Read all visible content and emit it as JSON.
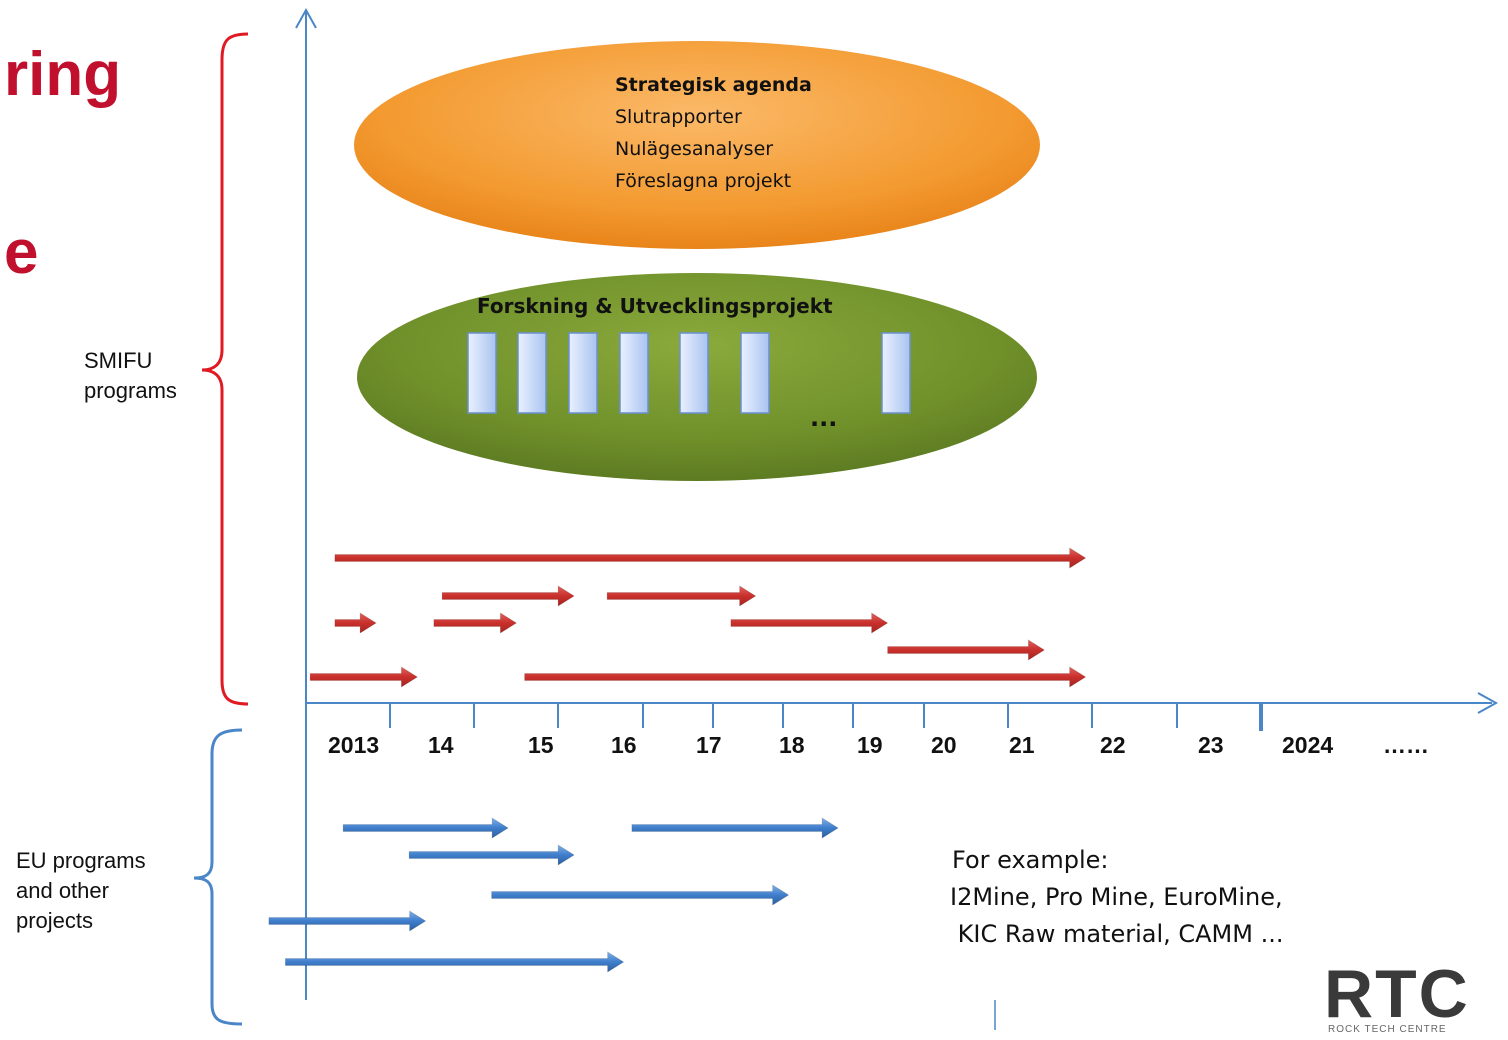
{
  "title_fragments": [
    "ring",
    "e"
  ],
  "labels": {
    "smifu": "SMIFU\nprograms",
    "eu": "EU programs\nand other\nprojects"
  },
  "strategic_ellipse": {
    "heading": "Strategisk agenda",
    "lines": [
      "Slutrapporter",
      "Nulägesanalyser",
      "Föreslagna projekt"
    ],
    "color": "#f39a30"
  },
  "research_ellipse": {
    "heading": "Forskning & Utvecklingsprojekt",
    "ellipsis": "...",
    "box_count": 7,
    "color": "#6f8f2a"
  },
  "axis": {
    "years": [
      "2013",
      "14",
      "15",
      "16",
      "17",
      "18",
      "19",
      "20",
      "21",
      "22",
      "23",
      "2024",
      "……"
    ]
  },
  "smifu_arrows": [
    {
      "start": 2012.7,
      "end": 2021.8
    },
    {
      "start": 2014.0,
      "end": 2015.6
    },
    {
      "start": 2016.0,
      "end": 2017.8
    },
    {
      "start": 2012.7,
      "end": 2013.2
    },
    {
      "start": 2013.9,
      "end": 2014.9
    },
    {
      "start": 2017.5,
      "end": 2019.4
    },
    {
      "start": 2019.4,
      "end": 2021.3
    },
    {
      "start": 2012.4,
      "end": 2013.7
    },
    {
      "start": 2015.0,
      "end": 2021.8
    }
  ],
  "eu_arrows": [
    {
      "start": 2012.8,
      "end": 2014.8
    },
    {
      "start": 2016.3,
      "end": 2018.8
    },
    {
      "start": 2013.6,
      "end": 2015.6
    },
    {
      "start": 2014.6,
      "end": 2018.2
    },
    {
      "start": 2011.9,
      "end": 2013.8
    },
    {
      "start": 2012.1,
      "end": 2016.2
    }
  ],
  "example": {
    "lines": [
      "For example:",
      "I2Mine, Pro Mine, EuroMine,",
      " KIC Raw material, CAMM ..."
    ]
  },
  "logo": {
    "text": "RTC",
    "subtitle": "ROCK TECH CENTRE"
  },
  "colors": {
    "smifu_arrow": "#c9302c",
    "eu_arrow": "#3f7ecb",
    "axis": "#4a86c8",
    "smifu_bracket": "#e01a22",
    "eu_bracket": "#4a86c8"
  }
}
